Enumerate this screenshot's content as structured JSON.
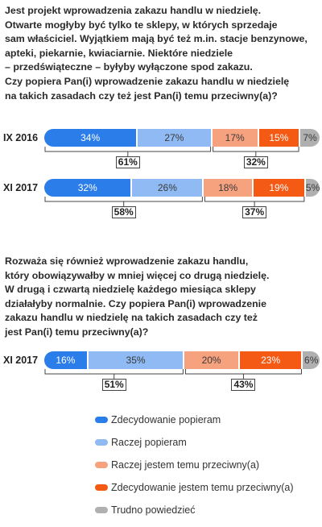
{
  "questions": {
    "q1": "Jest projekt wprowadzenia zakazu handlu w niedzielę.\nOtwarte mogłyby być tylko te sklepy, w których sprzedaje\nsam właściciel. Wyjątkiem mają być też m.in. stacje benzynowe,\napteki, piekarnie, kwiaciarnie. Niektóre niedziele\n– przedświąteczne – byłyby wyłączone spod zakazu.\nCzy popiera Pan(i) wprowadzenie zakazu handlu w niedzielę\nna takich zasadach czy też jest Pan(i) temu przeciwny(a)?",
    "q2": "Rozważa się również wprowadzenie zakazu handlu,\nktóry obowiązywałby w mniej więcej co drugą niedzielę.\nW drugą i czwartą niedzielę każdego miesiąca sklepy\ndziałałyby normalnie. Czy popiera Pan(i) wprowadzenie\nzakazu handlu w niedzielę na takich zasadach czy też\njest Pan(i) temu przeciwny(a)?"
  },
  "colors": {
    "strongly_support": "#2b7de9",
    "rather_support": "#8fbaf3",
    "rather_oppose": "#f7a27f",
    "strongly_oppose": "#f45a14",
    "dont_know": "#b0b0b0"
  },
  "chart_data": [
    {
      "type": "bar",
      "orientation": "horizontal-stacked",
      "categories": [
        "IX 2016",
        "XI 2017"
      ],
      "series": [
        {
          "name": "Zdecydowanie popieram",
          "values": [
            34,
            32
          ]
        },
        {
          "name": "Raczej popieram",
          "values": [
            27,
            26
          ]
        },
        {
          "name": "Raczej jestem temu przeciwny(a)",
          "values": [
            17,
            18
          ]
        },
        {
          "name": "Zdecydowanie jestem temu przeciwny(a)",
          "values": [
            15,
            19
          ]
        },
        {
          "name": "Trudno powiedzieć",
          "values": [
            7,
            5
          ]
        }
      ],
      "support_totals": [
        61,
        58
      ],
      "oppose_totals": [
        32,
        37
      ]
    },
    {
      "type": "bar",
      "orientation": "horizontal-stacked",
      "categories": [
        "XI 2017"
      ],
      "series": [
        {
          "name": "Zdecydowanie popieram",
          "values": [
            16
          ]
        },
        {
          "name": "Raczej popieram",
          "values": [
            35
          ]
        },
        {
          "name": "Raczej jestem temu przeciwny(a)",
          "values": [
            20
          ]
        },
        {
          "name": "Zdecydowanie jestem temu przeciwny(a)",
          "values": [
            23
          ]
        },
        {
          "name": "Trudno powiedzieć",
          "values": [
            6
          ]
        }
      ],
      "support_totals": [
        51
      ],
      "oppose_totals": [
        43
      ]
    }
  ],
  "legend": [
    {
      "label": "Zdecydowanie popieram",
      "color": "#2b7de9"
    },
    {
      "label": "Raczej popieram",
      "color": "#8fbaf3"
    },
    {
      "label": "Raczej jestem temu przeciwny(a)",
      "color": "#f7a27f"
    },
    {
      "label": "Zdecydowanie jestem temu przeciwny(a)",
      "color": "#f45a14"
    },
    {
      "label": "Trudno powiedzieć",
      "color": "#b0b0b0"
    }
  ]
}
